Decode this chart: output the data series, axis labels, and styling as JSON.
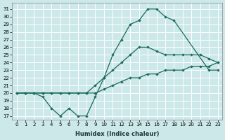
{
  "xlabel": "Humidex (Indice chaleur)",
  "bg_color": "#cce8e8",
  "grid_color": "#ffffff",
  "line_color": "#1a6b5a",
  "xlim": [
    -0.5,
    23.5
  ],
  "ylim": [
    16.5,
    31.8
  ],
  "yticks": [
    17,
    18,
    19,
    20,
    21,
    22,
    23,
    24,
    25,
    26,
    27,
    28,
    29,
    30,
    31
  ],
  "xticks": [
    0,
    1,
    2,
    3,
    4,
    5,
    6,
    7,
    8,
    9,
    10,
    11,
    12,
    13,
    14,
    15,
    16,
    17,
    18,
    19,
    20,
    21,
    22,
    23
  ],
  "line1_x": [
    0,
    1,
    2,
    3,
    4,
    5,
    6,
    7,
    8,
    9,
    10,
    11,
    12,
    13,
    14,
    15,
    16,
    17,
    18,
    22,
    23
  ],
  "line1_y": [
    20,
    20,
    20,
    19.5,
    18,
    17,
    18,
    17,
    17,
    19.5,
    22,
    25,
    27,
    29,
    29.5,
    31,
    31,
    30,
    29.5,
    23,
    23
  ],
  "line2_x": [
    0,
    1,
    2,
    3,
    4,
    5,
    6,
    7,
    8,
    9,
    10,
    11,
    12,
    13,
    14,
    15,
    16,
    17,
    18,
    19,
    20,
    21,
    22,
    23
  ],
  "line2_y": [
    20,
    20,
    20,
    20,
    20,
    20,
    20,
    20,
    20,
    21,
    22,
    23,
    24,
    25,
    26,
    26,
    25.5,
    25,
    25,
    25,
    25,
    25,
    24.5,
    24
  ],
  "line3_x": [
    0,
    1,
    2,
    3,
    4,
    5,
    6,
    7,
    8,
    9,
    10,
    11,
    12,
    13,
    14,
    15,
    16,
    17,
    18,
    19,
    20,
    21,
    22,
    23
  ],
  "line3_y": [
    20,
    20,
    20,
    20,
    20,
    20,
    20,
    20,
    20,
    20,
    20.5,
    21,
    21.5,
    22,
    22,
    22.5,
    22.5,
    23,
    23,
    23,
    23.5,
    23.5,
    23.5,
    24
  ],
  "xlabel_fontsize": 6,
  "xlabel_color": "#1a3a3a",
  "tick_fontsize": 5,
  "linewidth": 0.9,
  "markersize": 2.2
}
